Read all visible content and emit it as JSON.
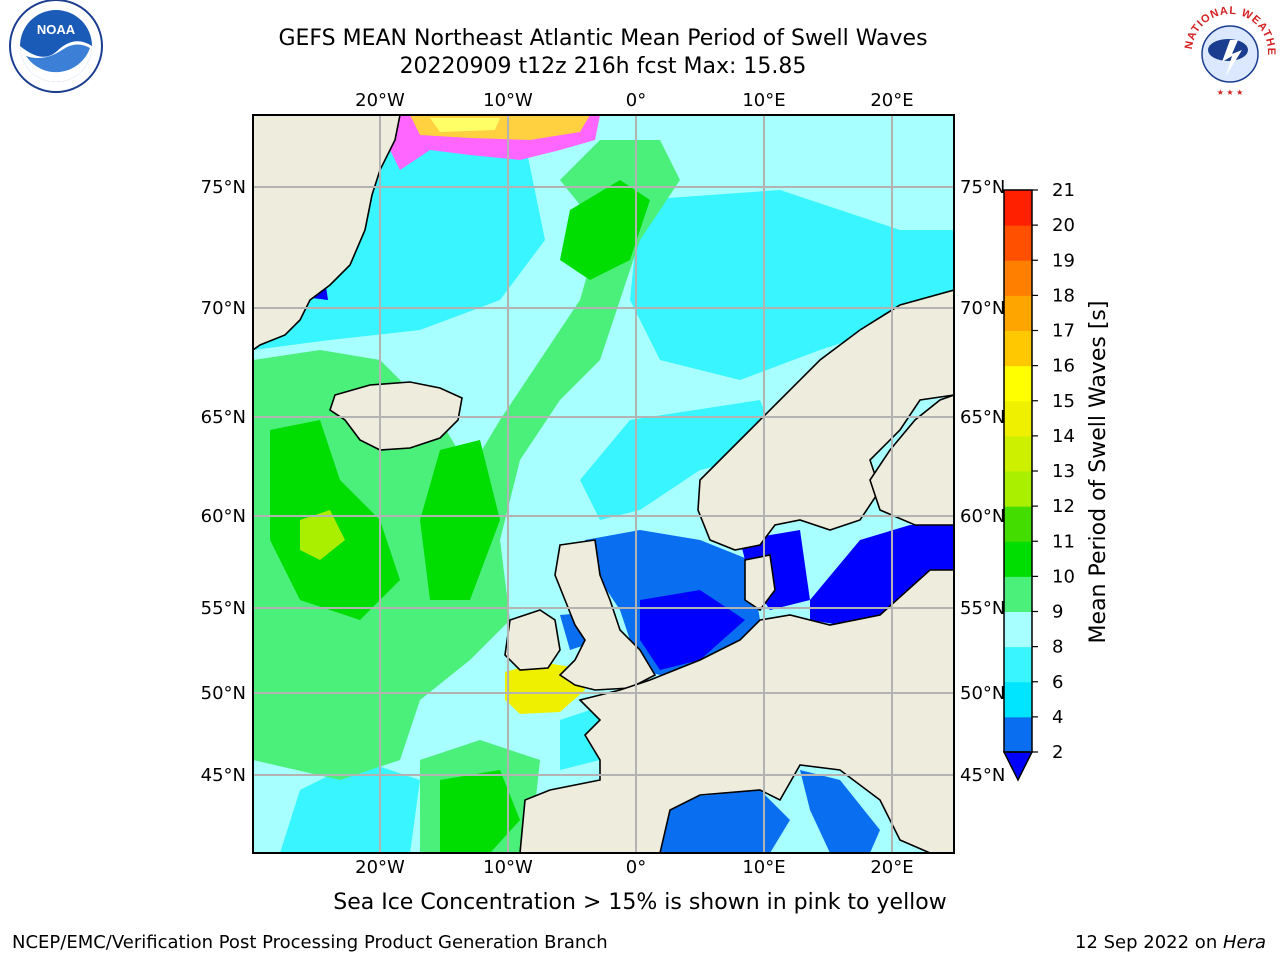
{
  "title_line1": "GEFS MEAN Northeast Atlantic Mean Period of Swell Waves",
  "title_line2": "20220909 t12z 216h fcst   Max: 15.85",
  "lon_labels": [
    "20°W",
    "10°W",
    "0°",
    "10°E",
    "20°E"
  ],
  "lat_labels": [
    "75°N",
    "70°N",
    "65°N",
    "60°N",
    "55°N",
    "50°N",
    "45°N"
  ],
  "colorbar": {
    "title": "Mean Period of Swell Waves [s]",
    "ticks": [
      "2",
      "4",
      "6",
      "8",
      "9",
      "10",
      "11",
      "12",
      "13",
      "14",
      "15",
      "16",
      "17",
      "18",
      "19",
      "20",
      "21"
    ],
    "colors": [
      "#0a6ef0",
      "#00e5ff",
      "#38f5ff",
      "#a8ffff",
      "#4bf07a",
      "#00dd00",
      "#44dd00",
      "#aaee00",
      "#ccf000",
      "#eef000",
      "#ffff00",
      "#ffc800",
      "#ffa500",
      "#ff8000",
      "#ff5000",
      "#ff2000"
    ],
    "extend_color": "#0000ff"
  },
  "note": "Sea Ice Concentration > 15% is shown in pink to yellow",
  "footer_left": "NCEP/EMC/Verification Post Processing Product Generation Branch",
  "footer_right_text": "12 Sep 2022 on ",
  "footer_right_host": "Hera",
  "logos": {
    "left": "NOAA",
    "right": "NATIONAL WEATHER SERVICE"
  }
}
